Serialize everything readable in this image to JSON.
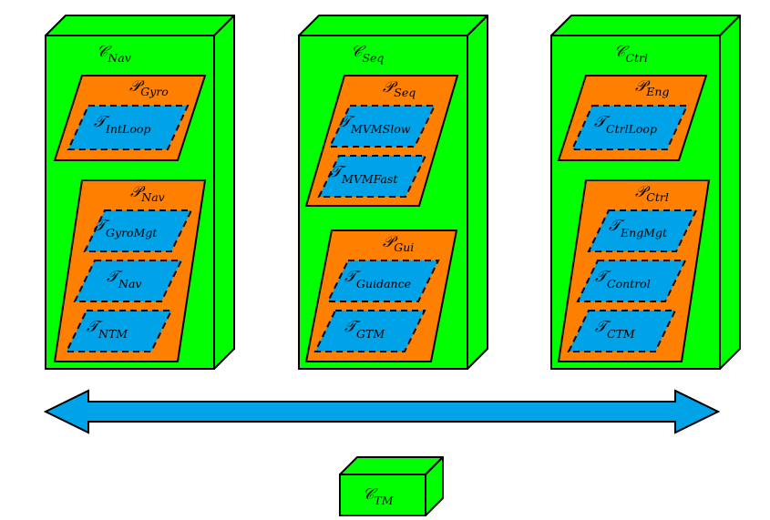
{
  "colors": {
    "component_fill": "#00ff00",
    "partition_fill": "#ff8000",
    "task_fill": "#00a2e8",
    "bus_fill": "#00a2e8",
    "stroke": "#000000"
  },
  "components": [
    {
      "symbol": "𝒞",
      "sub": "Nav",
      "partitions": [
        {
          "symbol": "𝒫",
          "sub": "Gyro",
          "tasks": [
            {
              "symbol": "𝒯",
              "sub": "IntLoop"
            }
          ]
        },
        {
          "symbol": "𝒫",
          "sub": "Nav",
          "tasks": [
            {
              "symbol": "𝒯",
              "sub": "GyroMgt"
            },
            {
              "symbol": "𝒯",
              "sub": "Nav"
            },
            {
              "symbol": "𝒯",
              "sub": "NTM"
            }
          ]
        }
      ]
    },
    {
      "symbol": "𝒞",
      "sub": "Seq",
      "partitions": [
        {
          "symbol": "𝒫",
          "sub": "Seq",
          "tasks": [
            {
              "symbol": "𝒯",
              "sub": "MVMSlow"
            },
            {
              "symbol": "𝒯",
              "sub": "MVMFast"
            }
          ]
        },
        {
          "symbol": "𝒫",
          "sub": "Gui",
          "tasks": [
            {
              "symbol": "𝒯",
              "sub": "Guidance"
            },
            {
              "symbol": "𝒯",
              "sub": "GTM"
            }
          ]
        }
      ]
    },
    {
      "symbol": "𝒞",
      "sub": "Ctrl",
      "partitions": [
        {
          "symbol": "𝒫",
          "sub": "Eng",
          "tasks": [
            {
              "symbol": "𝒯",
              "sub": "CtrlLoop"
            }
          ]
        },
        {
          "symbol": "𝒫",
          "sub": "Ctrl",
          "tasks": [
            {
              "symbol": "𝒯",
              "sub": "EngMgt"
            },
            {
              "symbol": "𝒯",
              "sub": "Control"
            },
            {
              "symbol": "𝒯",
              "sub": "CTM"
            }
          ]
        }
      ]
    }
  ],
  "tm_component": {
    "symbol": "𝒞",
    "sub": "TM"
  }
}
